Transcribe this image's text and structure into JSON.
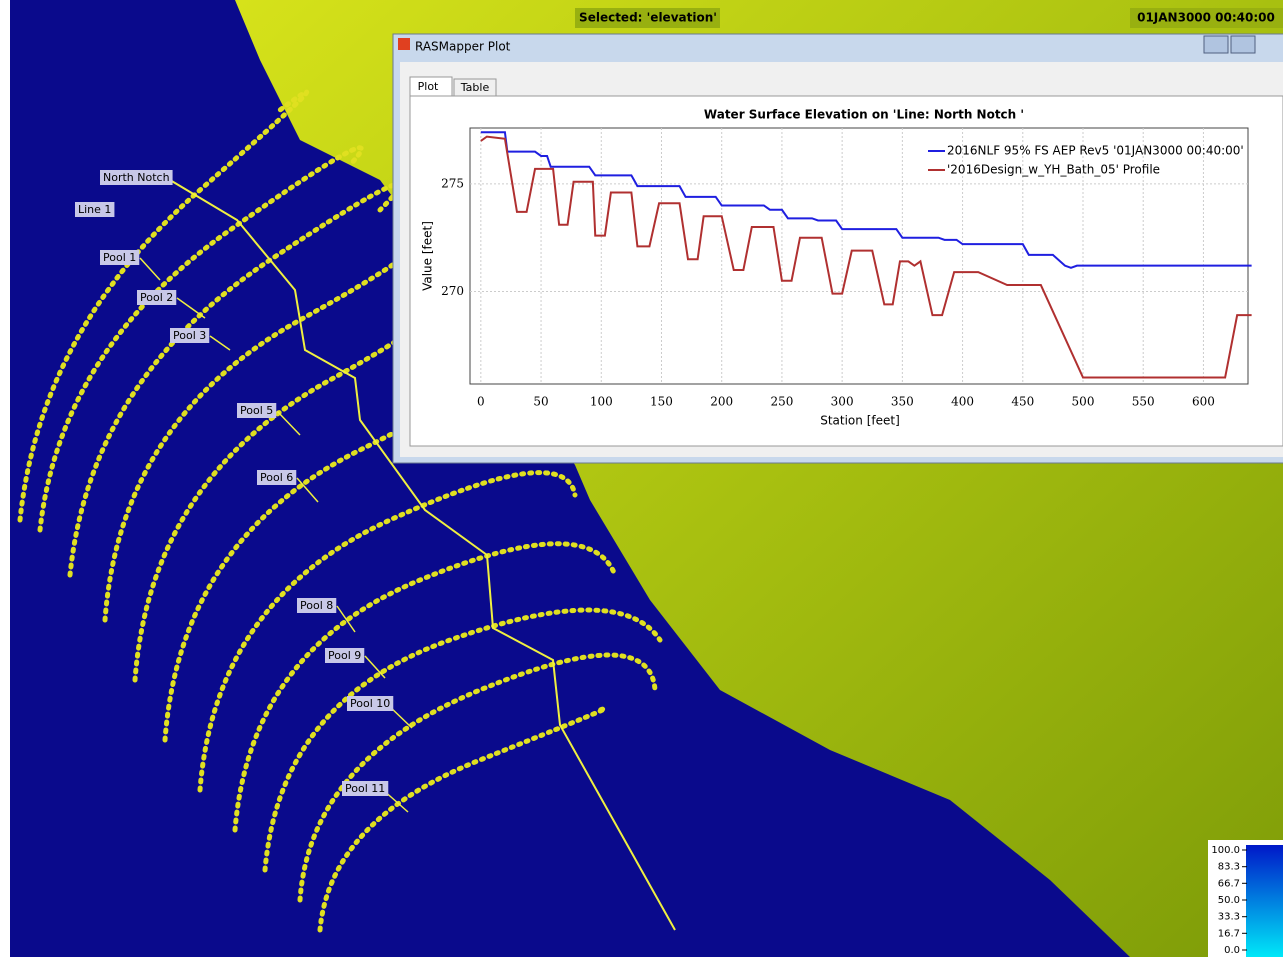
{
  "header": {
    "selected": "Selected: 'elevation'",
    "time": "01JAN3000 00:40:00"
  },
  "map_labels": [
    "North Notch",
    "Line 1",
    "Pool 1",
    "Pool 2",
    "Pool 3",
    "Pool 5",
    "Pool 6",
    "Pool 8",
    "Pool 9",
    "Pool 10",
    "Pool 11"
  ],
  "colorbar_ticks": [
    {
      "value": 100,
      "label": "100.0"
    },
    {
      "value": 83.3,
      "label": "83.3"
    },
    {
      "value": 66.7,
      "label": "66.7"
    },
    {
      "value": 50,
      "label": "50.0"
    },
    {
      "value": 33.3,
      "label": "33.3"
    },
    {
      "value": 16.7,
      "label": "16.7"
    },
    {
      "value": 0,
      "label": "0.0"
    }
  ],
  "window": {
    "title": "RASMapper Plot",
    "tabs": [
      "Plot",
      "Table"
    ]
  },
  "chart_data": {
    "type": "line",
    "title": "Water Surface Elevation on 'Line: North Notch '",
    "x_label": "Station [feet]",
    "y_label": "Value [feet]",
    "xlim": [
      -9,
      637
    ],
    "ylim": [
      265.7,
      277.6
    ],
    "xticks": [
      0,
      50,
      100,
      150,
      200,
      250,
      300,
      350,
      400,
      450,
      500,
      550,
      600
    ],
    "yticks": [
      270,
      275
    ],
    "grid": true,
    "series": [
      {
        "name": "2016NLF 95% FS AEP Rev5 '01JAN3000 00:40:00'",
        "color": "#1f1fe0",
        "x": [
          0,
          20,
          22,
          45,
          50,
          55,
          58,
          90,
          95,
          125,
          130,
          165,
          170,
          195,
          200,
          235,
          240,
          250,
          255,
          275,
          280,
          295,
          300,
          345,
          350,
          380,
          385,
          395,
          400,
          450,
          455,
          475,
          485,
          490,
          495,
          640
        ],
        "values": [
          277.4,
          277.4,
          276.5,
          276.5,
          276.3,
          276.3,
          275.8,
          275.8,
          275.4,
          275.4,
          274.9,
          274.9,
          274.4,
          274.4,
          274.0,
          274.0,
          273.8,
          273.8,
          273.4,
          273.4,
          273.3,
          273.3,
          272.9,
          272.9,
          272.5,
          272.5,
          272.4,
          272.4,
          272.2,
          272.2,
          271.7,
          271.7,
          271.2,
          271.1,
          271.2,
          271.2
        ]
      },
      {
        "name": "'2016Design_w_YH_Bath_05' Profile",
        "color": "#b03030",
        "x": [
          0,
          5,
          20,
          30,
          38,
          45,
          60,
          65,
          72,
          77,
          93,
          95,
          103,
          108,
          125,
          130,
          140,
          148,
          165,
          172,
          180,
          185,
          200,
          210,
          218,
          225,
          243,
          250,
          258,
          265,
          283,
          292,
          300,
          308,
          325,
          335,
          342,
          348,
          355,
          360,
          365,
          375,
          383,
          393,
          413,
          437,
          465,
          500,
          618,
          628,
          640
        ],
        "values": [
          277.0,
          277.2,
          277.1,
          273.7,
          273.7,
          275.7,
          275.7,
          273.1,
          273.1,
          275.1,
          275.1,
          272.6,
          272.6,
          274.6,
          274.6,
          272.1,
          272.1,
          274.1,
          274.1,
          271.5,
          271.5,
          273.5,
          273.5,
          271.0,
          271.0,
          273.0,
          273.0,
          270.5,
          270.5,
          272.5,
          272.5,
          269.9,
          269.9,
          271.9,
          271.9,
          269.4,
          269.4,
          271.4,
          271.4,
          271.2,
          271.4,
          268.9,
          268.9,
          270.9,
          270.9,
          270.3,
          270.3,
          266.0,
          266.0,
          268.9,
          268.9
        ]
      }
    ]
  }
}
